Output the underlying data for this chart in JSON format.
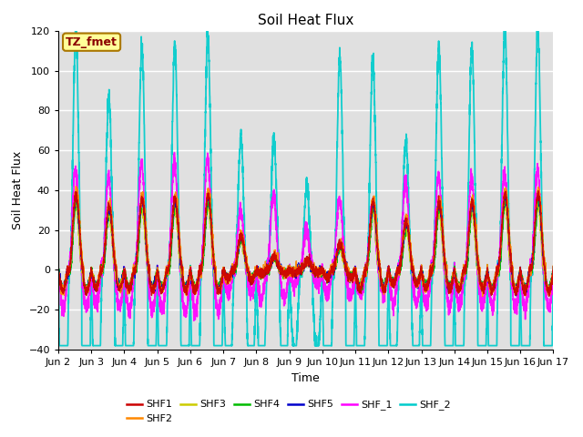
{
  "title": "Soil Heat Flux",
  "xlabel": "Time",
  "ylabel": "Soil Heat Flux",
  "ylim": [
    -40,
    120
  ],
  "xlim": [
    0,
    15
  ],
  "xtick_labels": [
    "Jun 2",
    "Jun 3",
    "Jun 4",
    "Jun 5",
    "Jun 6",
    "Jun 7",
    "Jun 8",
    "Jun 9",
    "Jun 10",
    "Jun 11",
    "Jun 12",
    "Jun 13",
    "Jun 14",
    "Jun 15",
    "Jun 16",
    "Jun 17"
  ],
  "ytick_vals": [
    -40,
    -20,
    0,
    20,
    40,
    60,
    80,
    100,
    120
  ],
  "series_colors": {
    "SHF1": "#cc0000",
    "SHF2": "#ff8800",
    "SHF3": "#cccc00",
    "SHF4": "#00bb00",
    "SHF5": "#0000cc",
    "SHF_1": "#ff00ff",
    "SHF_2": "#00cccc"
  },
  "annotation_text": "TZ_fmet",
  "annotation_bg": "#ffff99",
  "annotation_border": "#aa7700",
  "bg_color": "#e0e0e0",
  "grid_color": "#ffffff"
}
